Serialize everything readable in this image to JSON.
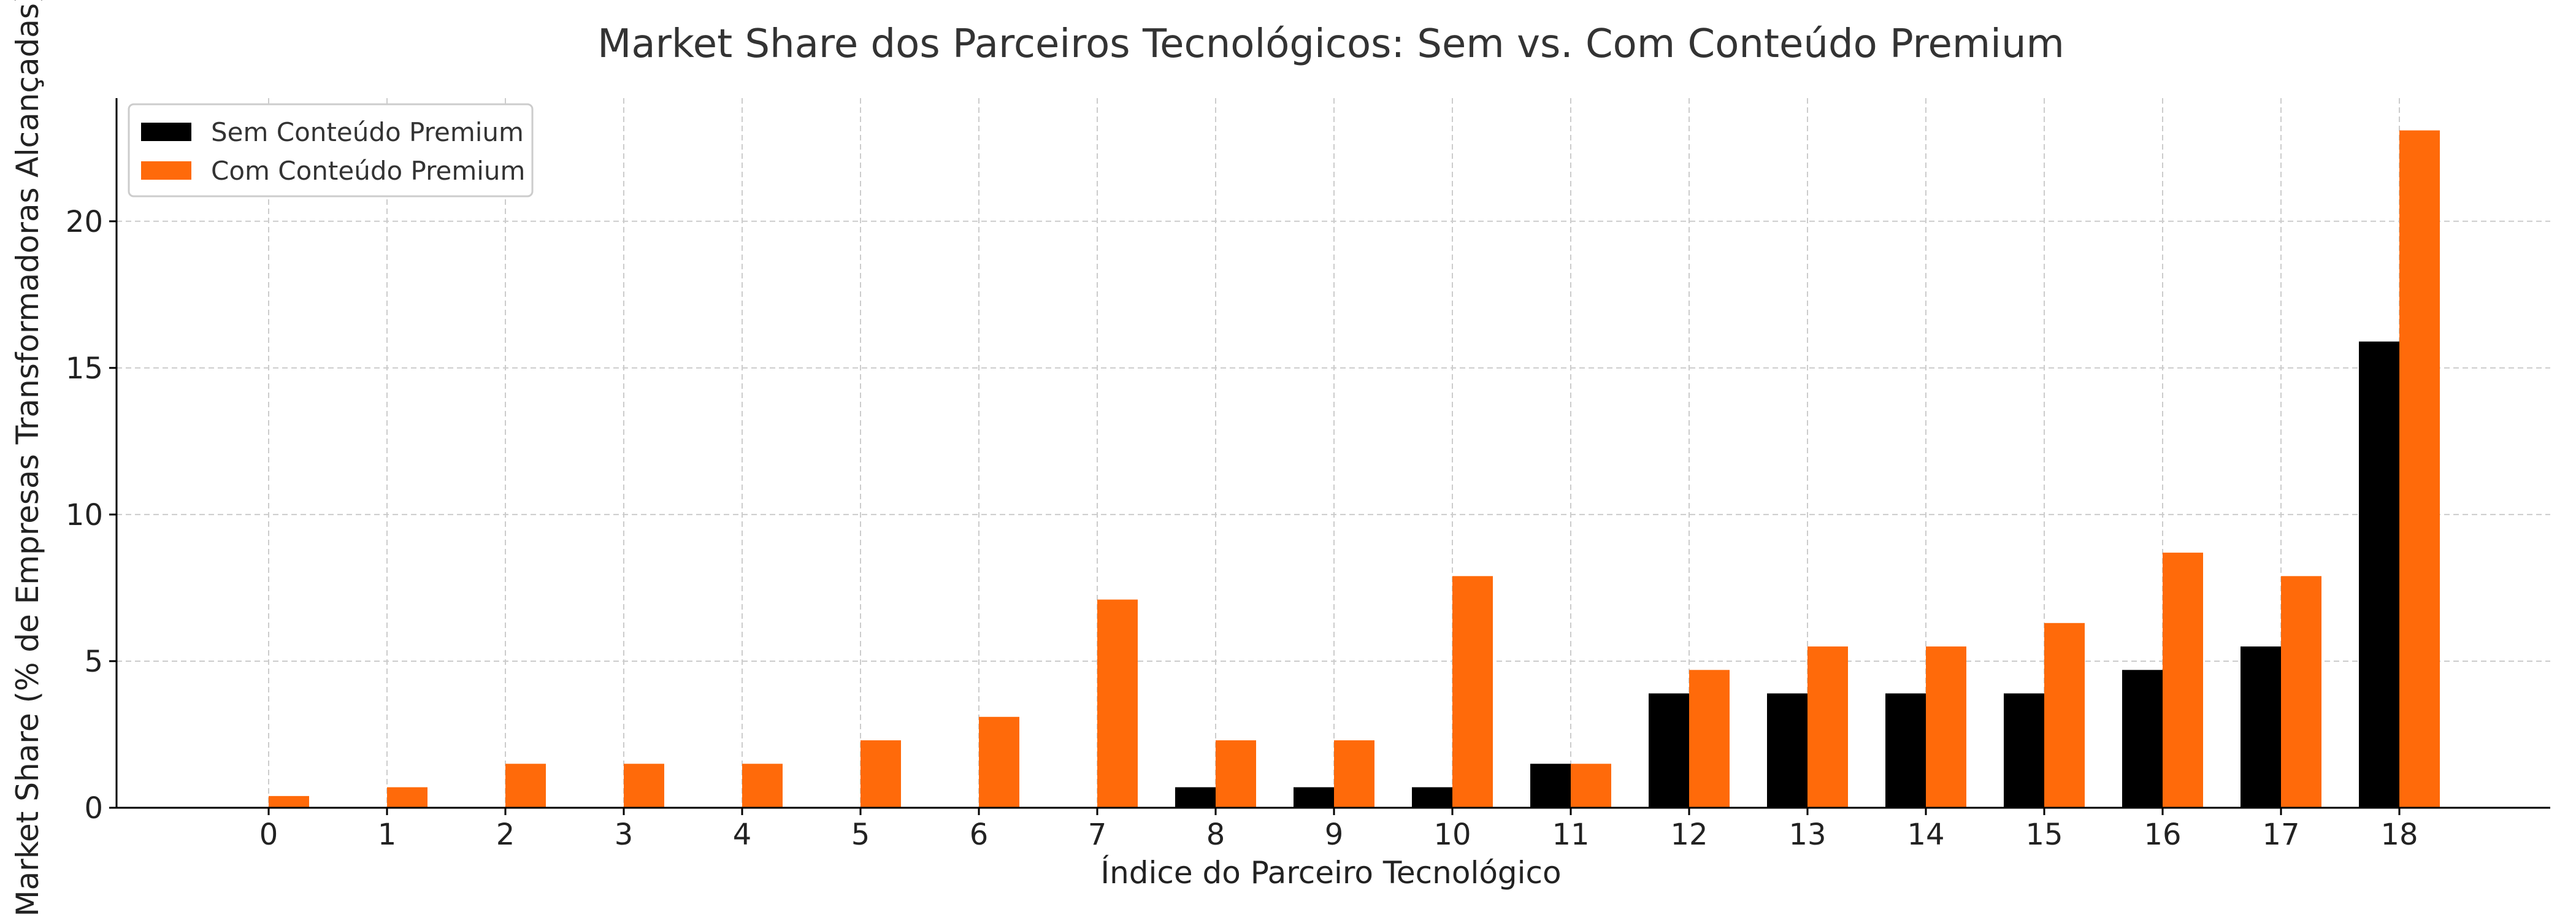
{
  "chart_data": {
    "type": "bar",
    "title": "Market Share dos Parceiros Tecnológicos: Sem vs. Com Conteúdo Premium",
    "xlabel": "Índice do Parceiro Tecnológico",
    "ylabel": "Market Share (% de Empresas Transformadoras Alcançadas)",
    "categories": [
      "0",
      "1",
      "2",
      "3",
      "4",
      "5",
      "6",
      "7",
      "8",
      "9",
      "10",
      "11",
      "12",
      "13",
      "14",
      "15",
      "16",
      "17",
      "18"
    ],
    "ylim": [
      0,
      24.2
    ],
    "yticks": [
      0,
      5,
      10,
      15,
      20
    ],
    "grid": true,
    "legend_position": "top-left",
    "series": [
      {
        "name": "Sem Conteúdo Premium",
        "color": "#000000",
        "values": [
          0,
          0,
          0,
          0,
          0,
          0,
          0,
          0,
          0.7,
          0.7,
          0.7,
          1.5,
          3.9,
          3.9,
          3.9,
          3.9,
          4.7,
          5.5,
          15.9
        ]
      },
      {
        "name": "Com Conteúdo Premium",
        "color": "#ff6a0a",
        "values": [
          0.4,
          0.7,
          1.5,
          1.5,
          1.5,
          2.3,
          3.1,
          7.1,
          2.3,
          2.3,
          7.9,
          1.5,
          4.7,
          5.5,
          5.5,
          6.3,
          8.7,
          7.9,
          23.1
        ]
      }
    ]
  }
}
